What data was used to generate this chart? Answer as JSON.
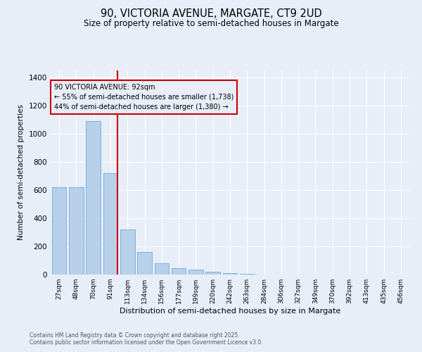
{
  "title1": "90, VICTORIA AVENUE, MARGATE, CT9 2UD",
  "title2": "Size of property relative to semi-detached houses in Margate",
  "xlabel": "Distribution of semi-detached houses by size in Margate",
  "ylabel": "Number of semi-detached properties",
  "categories": [
    "27sqm",
    "48sqm",
    "70sqm",
    "91sqm",
    "113sqm",
    "134sqm",
    "156sqm",
    "177sqm",
    "199sqm",
    "220sqm",
    "242sqm",
    "263sqm",
    "284sqm",
    "306sqm",
    "327sqm",
    "349sqm",
    "370sqm",
    "392sqm",
    "413sqm",
    "435sqm",
    "456sqm"
  ],
  "values": [
    620,
    620,
    1090,
    720,
    320,
    160,
    80,
    45,
    35,
    20,
    10,
    5,
    0,
    0,
    0,
    0,
    0,
    0,
    0,
    0,
    0
  ],
  "bar_color": "#b8d0ea",
  "bar_edge_color": "#6aaad4",
  "marker_index": 3,
  "marker_label": "90 VICTORIA AVENUE: 92sqm",
  "marker_line_color": "#cc0000",
  "annotation_line1": "← 55% of semi-detached houses are smaller (1,738)",
  "annotation_line2": "44% of semi-detached houses are larger (1,380) →",
  "annotation_box_color": "#cc0000",
  "ylim": [
    0,
    1450
  ],
  "yticks": [
    0,
    200,
    400,
    600,
    800,
    1000,
    1200,
    1400
  ],
  "bg_color": "#e8eef8",
  "grid_color": "#ffffff",
  "footnote1": "Contains HM Land Registry data © Crown copyright and database right 2025.",
  "footnote2": "Contains public sector information licensed under the Open Government Licence v3.0."
}
